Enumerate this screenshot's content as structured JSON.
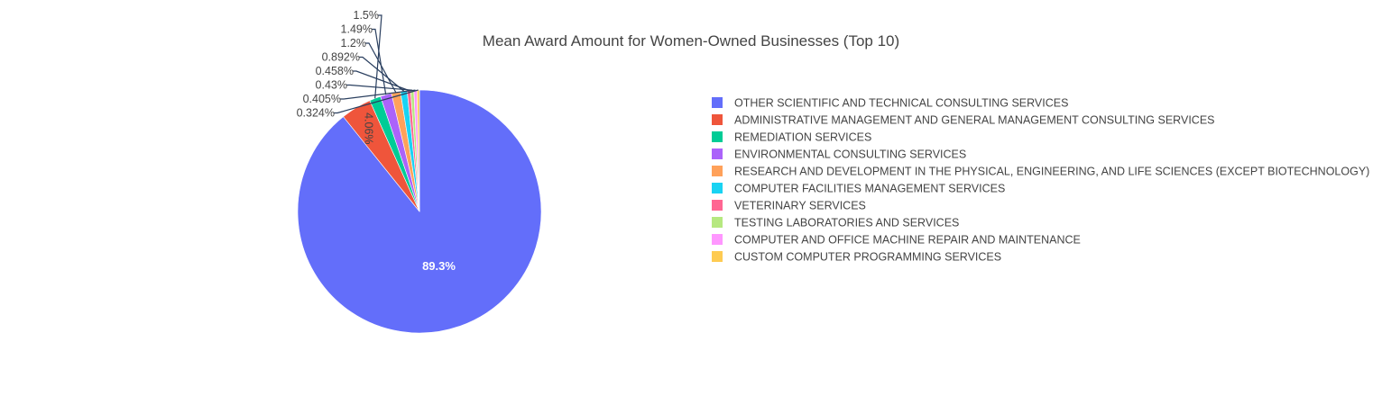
{
  "chart_data": {
    "type": "pie",
    "title": "Mean Award Amount for Women-Owned Businesses (Top 10)",
    "legend_position": "right",
    "sort": "descending",
    "direction": "clockwise",
    "slices": [
      {
        "label": "OTHER SCIENTIFIC AND TECHNICAL CONSULTING SERVICES",
        "percent": 89.3,
        "text": "89.3%",
        "color": "#636efa"
      },
      {
        "label": "ADMINISTRATIVE MANAGEMENT AND GENERAL MANAGEMENT CONSULTING SERVICES",
        "percent": 4.06,
        "text": "4.06%",
        "color": "#ef553b"
      },
      {
        "label": "REMEDIATION SERVICES",
        "percent": 1.5,
        "text": "1.5%",
        "color": "#00cc96"
      },
      {
        "label": "ENVIRONMENTAL CONSULTING SERVICES",
        "percent": 1.49,
        "text": "1.49%",
        "color": "#ab63fa"
      },
      {
        "label": "RESEARCH AND DEVELOPMENT IN THE PHYSICAL, ENGINEERING, AND LIFE SCIENCES (EXCEPT BIOTECHNOLOGY)",
        "percent": 1.2,
        "text": "1.2%",
        "color": "#ffa15a"
      },
      {
        "label": "COMPUTER FACILITIES MANAGEMENT SERVICES",
        "percent": 0.892,
        "text": "0.892%",
        "color": "#19d3f3"
      },
      {
        "label": "VETERINARY SERVICES",
        "percent": 0.458,
        "text": "0.458%",
        "color": "#ff6692"
      },
      {
        "label": "TESTING LABORATORIES AND SERVICES",
        "percent": 0.43,
        "text": "0.43%",
        "color": "#b6e880"
      },
      {
        "label": "COMPUTER AND OFFICE MACHINE REPAIR AND MAINTENANCE",
        "percent": 0.405,
        "text": "0.405%",
        "color": "#ff97ff"
      },
      {
        "label": "CUSTOM COMPUTER PROGRAMMING SERVICES",
        "percent": 0.324,
        "text": "0.324%",
        "color": "#fecb52"
      }
    ]
  }
}
